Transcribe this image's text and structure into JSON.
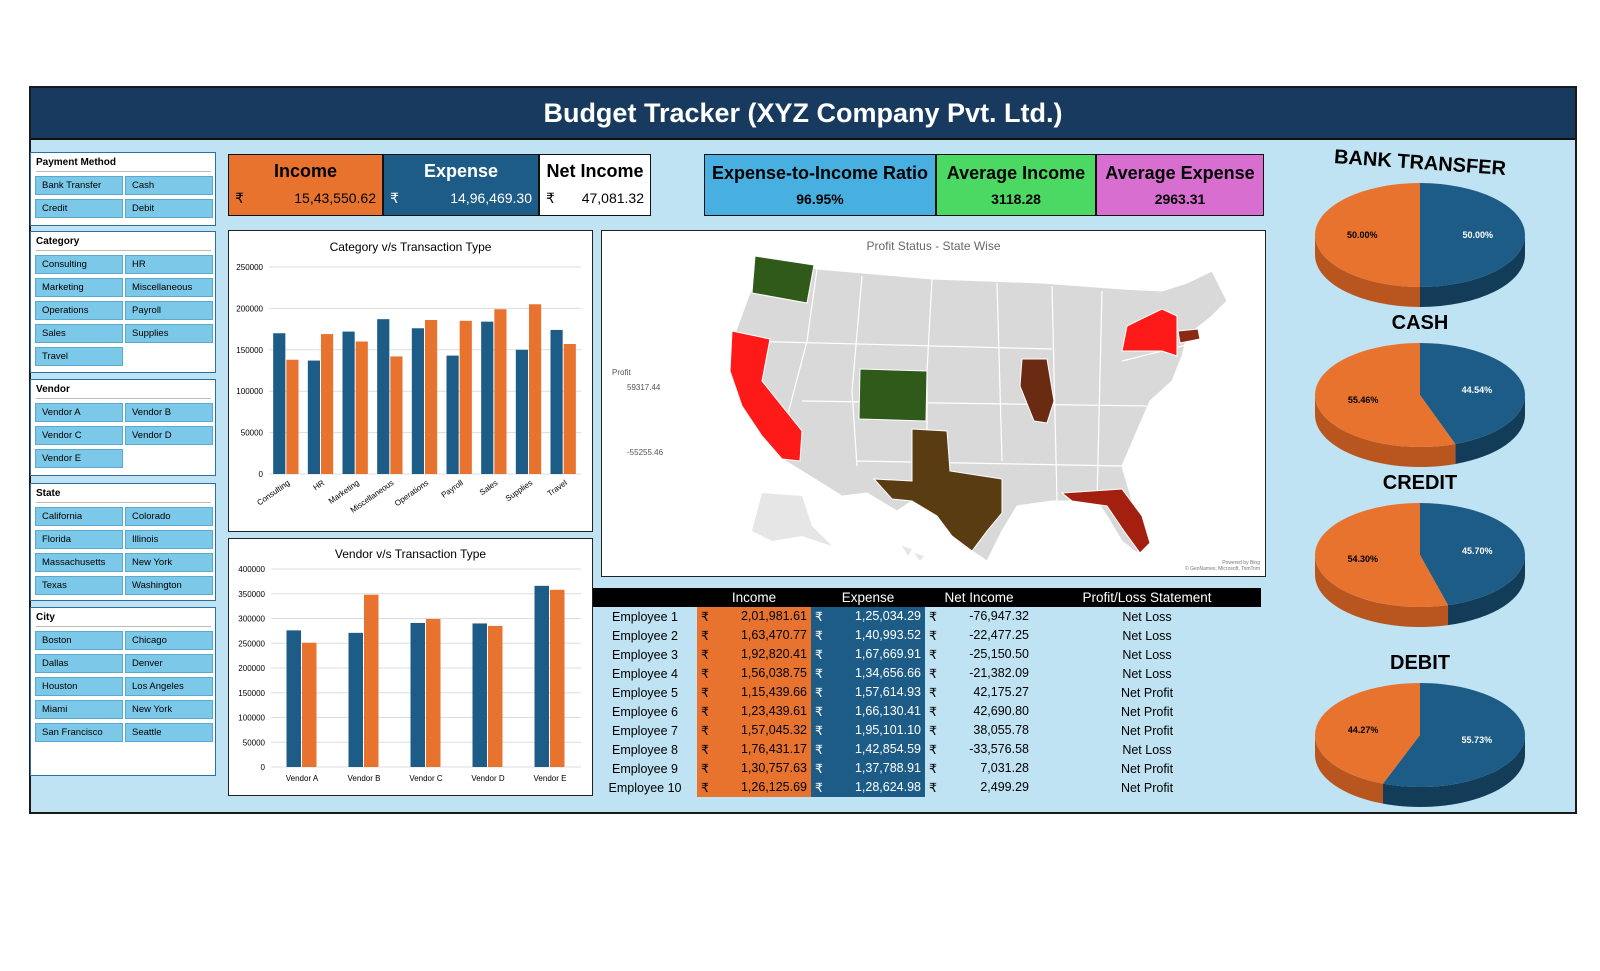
{
  "title": "Budget Tracker (XYZ Company Pvt. Ltd.)",
  "slicers": [
    {
      "title": "Payment Method",
      "items": [
        "Bank Transfer",
        "Cash",
        "Credit",
        "Debit"
      ]
    },
    {
      "title": "Category",
      "items": [
        "Consulting",
        "HR",
        "Marketing",
        "Miscellaneous",
        "Operations",
        "Payroll",
        "Sales",
        "Supplies",
        "Travel"
      ]
    },
    {
      "title": "Vendor",
      "items": [
        "Vendor A",
        "Vendor B",
        "Vendor C",
        "Vendor D",
        "Vendor E"
      ]
    },
    {
      "title": "State",
      "items": [
        "California",
        "Colorado",
        "Florida",
        "Illinois",
        "Massachusetts",
        "New York",
        "Texas",
        "Washington"
      ]
    },
    {
      "title": "City",
      "items": [
        "Boston",
        "Chicago",
        "Dallas",
        "Denver",
        "Houston",
        "Los Angeles",
        "Miami",
        "New York",
        "San Francisco",
        "Seattle"
      ]
    }
  ],
  "kpis": {
    "income": {
      "label": "Income",
      "currency": "₹",
      "value": "15,43,550.62"
    },
    "expense": {
      "label": "Expense",
      "currency": "₹",
      "value": "14,96,469.30"
    },
    "net_income": {
      "label": "Net Income",
      "currency": "₹",
      "value": "47,081.32"
    },
    "ratio": {
      "label": "Expense-to-Income Ratio",
      "value": "96.95%"
    },
    "avg_income": {
      "label": "Average Income",
      "value": "3118.28"
    },
    "avg_expense": {
      "label": "Average Expense",
      "value": "2963.31"
    }
  },
  "colors": {
    "income": "#e8732f",
    "expense": "#1d5c86",
    "header": "#173a5e",
    "background": "#bfe3f2",
    "ratio": "#47b0e0",
    "avg_income": "#4cd963",
    "avg_expense": "#d86fd0"
  },
  "map": {
    "title": "Profit Status - State Wise",
    "legend_title": "Profit",
    "legend_max": "59317.44",
    "legend_min": "-55255.46",
    "credit": "Powered by Bing\n© GeoNames, Microsoft, TomTom"
  },
  "employee_table": {
    "headers": [
      "",
      "Income",
      "Expense",
      "Net Income",
      "Profit/Loss Statement"
    ],
    "currency": "₹",
    "rows": [
      {
        "name": "Employee 1",
        "income": "2,01,981.61",
        "expense": "1,25,034.29",
        "net": "-76,947.32",
        "status": "Net Loss"
      },
      {
        "name": "Employee 2",
        "income": "1,63,470.77",
        "expense": "1,40,993.52",
        "net": "-22,477.25",
        "status": "Net Loss"
      },
      {
        "name": "Employee 3",
        "income": "1,92,820.41",
        "expense": "1,67,669.91",
        "net": "-25,150.50",
        "status": "Net Loss"
      },
      {
        "name": "Employee 4",
        "income": "1,56,038.75",
        "expense": "1,34,656.66",
        "net": "-21,382.09",
        "status": "Net Loss"
      },
      {
        "name": "Employee 5",
        "income": "1,15,439.66",
        "expense": "1,57,614.93",
        "net": "42,175.27",
        "status": "Net Profit"
      },
      {
        "name": "Employee 6",
        "income": "1,23,439.61",
        "expense": "1,66,130.41",
        "net": "42,690.80",
        "status": "Net Profit"
      },
      {
        "name": "Employee 7",
        "income": "1,57,045.32",
        "expense": "1,95,101.10",
        "net": "38,055.78",
        "status": "Net Profit"
      },
      {
        "name": "Employee 8",
        "income": "1,76,431.17",
        "expense": "1,42,854.59",
        "net": "-33,576.58",
        "status": "Net Loss"
      },
      {
        "name": "Employee 9",
        "income": "1,30,757.63",
        "expense": "1,37,788.91",
        "net": "7,031.28",
        "status": "Net Profit"
      },
      {
        "name": "Employee 10",
        "income": "1,26,125.69",
        "expense": "1,28,624.98",
        "net": "2,499.29",
        "status": "Net Profit"
      }
    ]
  },
  "chart_data": [
    {
      "type": "bar",
      "title": "Category v/s Transaction Type",
      "categories": [
        "Consulting",
        "HR",
        "Marketing",
        "Miscellaneous",
        "Operations",
        "Payroll",
        "Sales",
        "Supplies",
        "Travel"
      ],
      "series": [
        {
          "values": [
            170000,
            137000,
            172000,
            187000,
            176000,
            143000,
            184000,
            150000,
            174000
          ],
          "color": "#1d5c86"
        },
        {
          "values": [
            138000,
            169000,
            160000,
            142000,
            186000,
            185000,
            199000,
            205000,
            157000
          ],
          "color": "#e8732f"
        }
      ],
      "yticks": [
        "0",
        "50000",
        "100000",
        "150000",
        "200000",
        "250000"
      ],
      "ylim": [
        0,
        250000
      ]
    },
    {
      "type": "bar",
      "title": "Vendor v/s Transaction Type",
      "categories": [
        "Vendor A",
        "Vendor B",
        "Vendor C",
        "Vendor D",
        "Vendor E"
      ],
      "series": [
        {
          "values": [
            276000,
            271000,
            291000,
            290000,
            366000
          ],
          "color": "#1d5c86"
        },
        {
          "values": [
            251000,
            348000,
            299000,
            285000,
            358000
          ],
          "color": "#e8732f"
        }
      ],
      "yticks": [
        "0",
        "50000",
        "100000",
        "150000",
        "200000",
        "250000",
        "300000",
        "350000",
        "400000"
      ],
      "ylim": [
        0,
        400000
      ]
    },
    {
      "type": "pie",
      "title": "BANK TRANSFER",
      "slices": [
        {
          "label": "50.00%",
          "value": 50.0,
          "color": "#e8732f"
        },
        {
          "label": "50.00%",
          "value": 50.0,
          "color": "#1d5c86"
        }
      ]
    },
    {
      "type": "pie",
      "title": "CASH",
      "slices": [
        {
          "label": "55.46%",
          "value": 55.46,
          "color": "#e8732f"
        },
        {
          "label": "44.54%",
          "value": 44.54,
          "color": "#1d5c86"
        }
      ]
    },
    {
      "type": "pie",
      "title": "CREDIT",
      "slices": [
        {
          "label": "54.30%",
          "value": 54.3,
          "color": "#e8732f"
        },
        {
          "label": "45.70%",
          "value": 45.7,
          "color": "#1d5c86"
        }
      ]
    },
    {
      "type": "pie",
      "title": "DEBIT",
      "slices": [
        {
          "label": "44.27%",
          "value": 44.27,
          "color": "#e8732f"
        },
        {
          "label": "55.73%",
          "value": 55.73,
          "color": "#1d5c86"
        }
      ]
    }
  ]
}
